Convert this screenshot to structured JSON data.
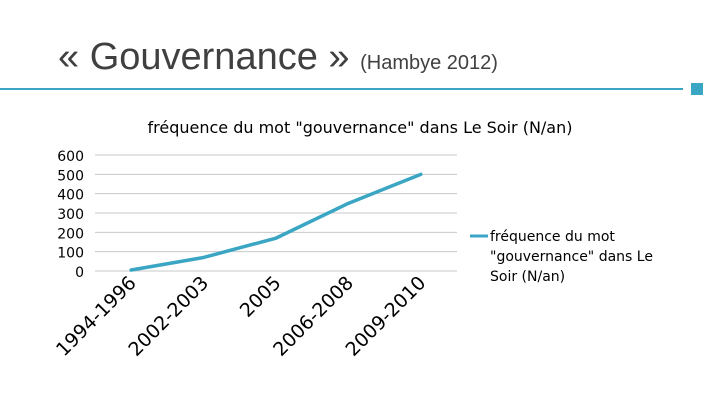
{
  "slide": {
    "title": "« Gouvernance »",
    "subtitle": "(Hambye 2012)"
  },
  "colors": {
    "accent": "#3aa6c4",
    "line": "#3aa6c4",
    "grid": "#c8c8c8"
  },
  "chart_data": {
    "type": "line",
    "title": "fréquence du mot \"gouvernance\" dans Le Soir (N/an)",
    "categories": [
      "1994-1996",
      "2002-2003",
      "2005",
      "2006-2008",
      "2009-2010"
    ],
    "series": [
      {
        "name": "fréquence du mot \"gouvernance\" dans Le Soir (N/an)",
        "values": [
          5,
          70,
          170,
          350,
          500
        ]
      }
    ],
    "xlabel": "",
    "ylabel": "",
    "ylim": [
      0,
      600
    ],
    "yticks": [
      0,
      100,
      200,
      300,
      400,
      500,
      600
    ],
    "grid": true,
    "legend": "right"
  }
}
